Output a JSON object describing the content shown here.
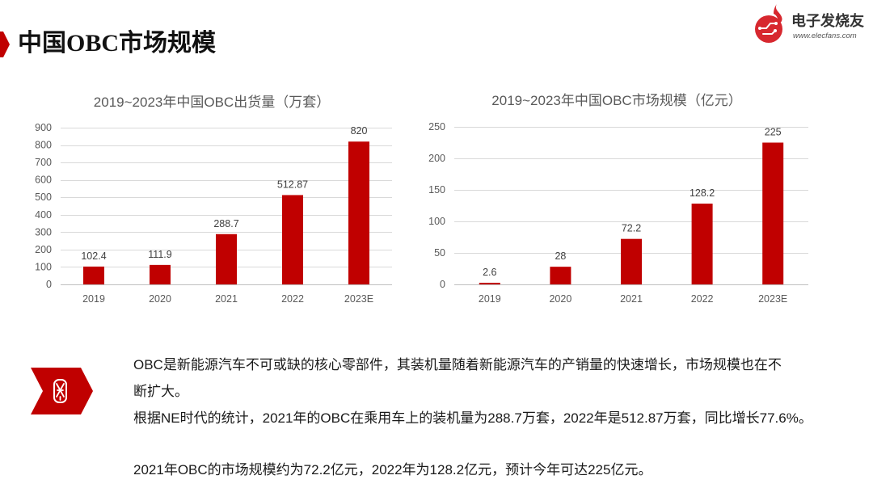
{
  "slide": {
    "title": "中国OBC市场规模",
    "accent_color": "#C00000"
  },
  "logo": {
    "brand": "电子发烧友",
    "website": "www.elecfans.com",
    "icon": "elecfans-flame-circuit-icon",
    "color": "#D7282F"
  },
  "chart_data": [
    {
      "type": "bar",
      "title": "2019~2023年中国OBC出货量（万套）",
      "categories": [
        "2019",
        "2020",
        "2021",
        "2022",
        "2023E"
      ],
      "values": [
        102.4,
        111.9,
        288.7,
        512.87,
        820
      ],
      "xlabel": "",
      "ylabel": "",
      "ylim": [
        0,
        900
      ],
      "yticks": [
        0,
        100,
        200,
        300,
        400,
        500,
        600,
        700,
        800,
        900
      ],
      "grid": true,
      "legend": "none",
      "data_labels": true,
      "bar_color": "#C00000"
    },
    {
      "type": "bar",
      "title": "2019~2023年中国OBC市场规模（亿元）",
      "categories": [
        "2019",
        "2020",
        "2021",
        "2022",
        "2023E"
      ],
      "values": [
        2.6,
        28,
        72.2,
        128.2,
        225
      ],
      "xlabel": "",
      "ylabel": "",
      "ylim": [
        0,
        250
      ],
      "yticks": [
        0,
        50,
        100,
        150,
        200,
        250
      ],
      "grid": true,
      "legend": "none",
      "data_labels": true,
      "bar_color": "#C00000"
    }
  ],
  "body": {
    "emblem_icon": "emblem-icon",
    "paragraph_1_lines": [
      "OBC是新能源汽车不可或缺的核心零部件，其装机量随着新能源汽车的产销量的快速增长，市场规模也在不",
      "断扩大。"
    ],
    "paragraph_2": "根据NE时代的统计，2021年的OBC在乘用车上的装机量为288.7万套，2022年是512.87万套，同比增长77.6%。",
    "paragraph_3": "2021年OBC的市场规模约为72.2亿元，2022年为128.2亿元，预计今年可达225亿元。"
  }
}
